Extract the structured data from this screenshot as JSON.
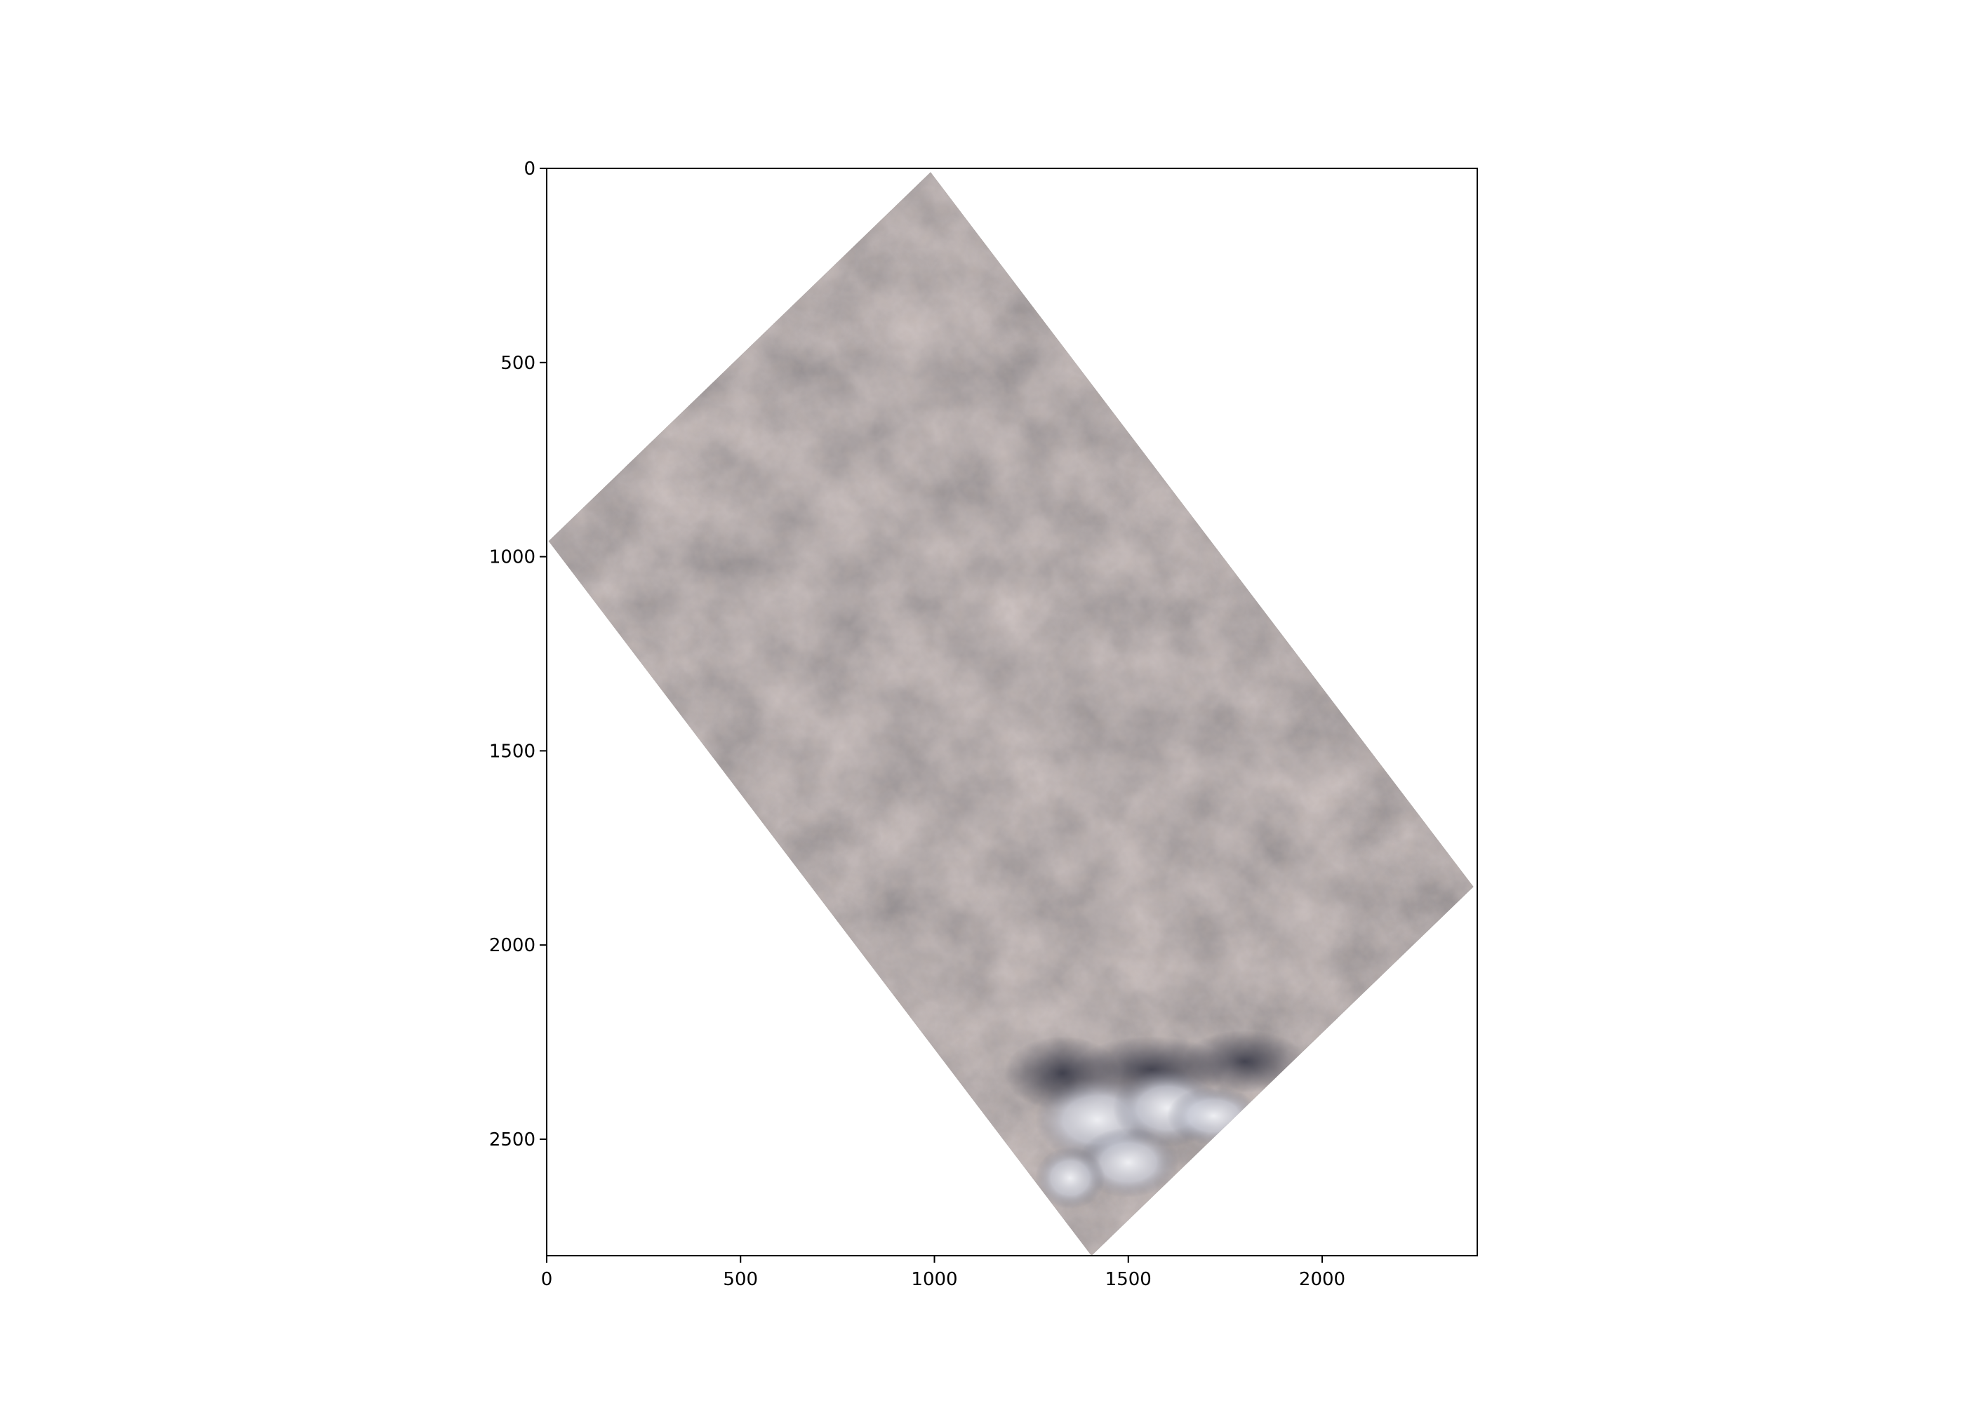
{
  "chart_data": {
    "type": "image",
    "title": "",
    "xlabel": "",
    "ylabel": "",
    "xlim": [
      0,
      2400
    ],
    "ylim": [
      2800,
      0
    ],
    "y_inverted": true,
    "grid": false,
    "x_ticks": [
      0,
      500,
      1000,
      1500,
      2000
    ],
    "y_ticks": [
      0,
      500,
      1000,
      1500,
      2000,
      2500
    ],
    "x_tick_labels": [
      "0",
      "500",
      "1000",
      "1500",
      "2000"
    ],
    "y_tick_labels": [
      "0",
      "500",
      "1000",
      "1500",
      "2000",
      "2500"
    ],
    "image_footprint_corners": [
      {
        "name": "top",
        "x": 990,
        "y": 10
      },
      {
        "name": "right",
        "x": 2390,
        "y": 1850
      },
      {
        "name": "bottom",
        "x": 1405,
        "y": 2800
      },
      {
        "name": "left",
        "x": 5,
        "y": 960
      }
    ],
    "colors": {
      "frame": "#000000",
      "terrain_base": "#5f5650",
      "terrain_light": "#7d6b5f",
      "terrain_dark": "#3e3d4a",
      "cloud": "#f2f3f7"
    },
    "scene_description": "satellite imagery, rotated rectangular footprint, brownish grey terrain with patchwork fields and cloud cover at the bottom"
  }
}
